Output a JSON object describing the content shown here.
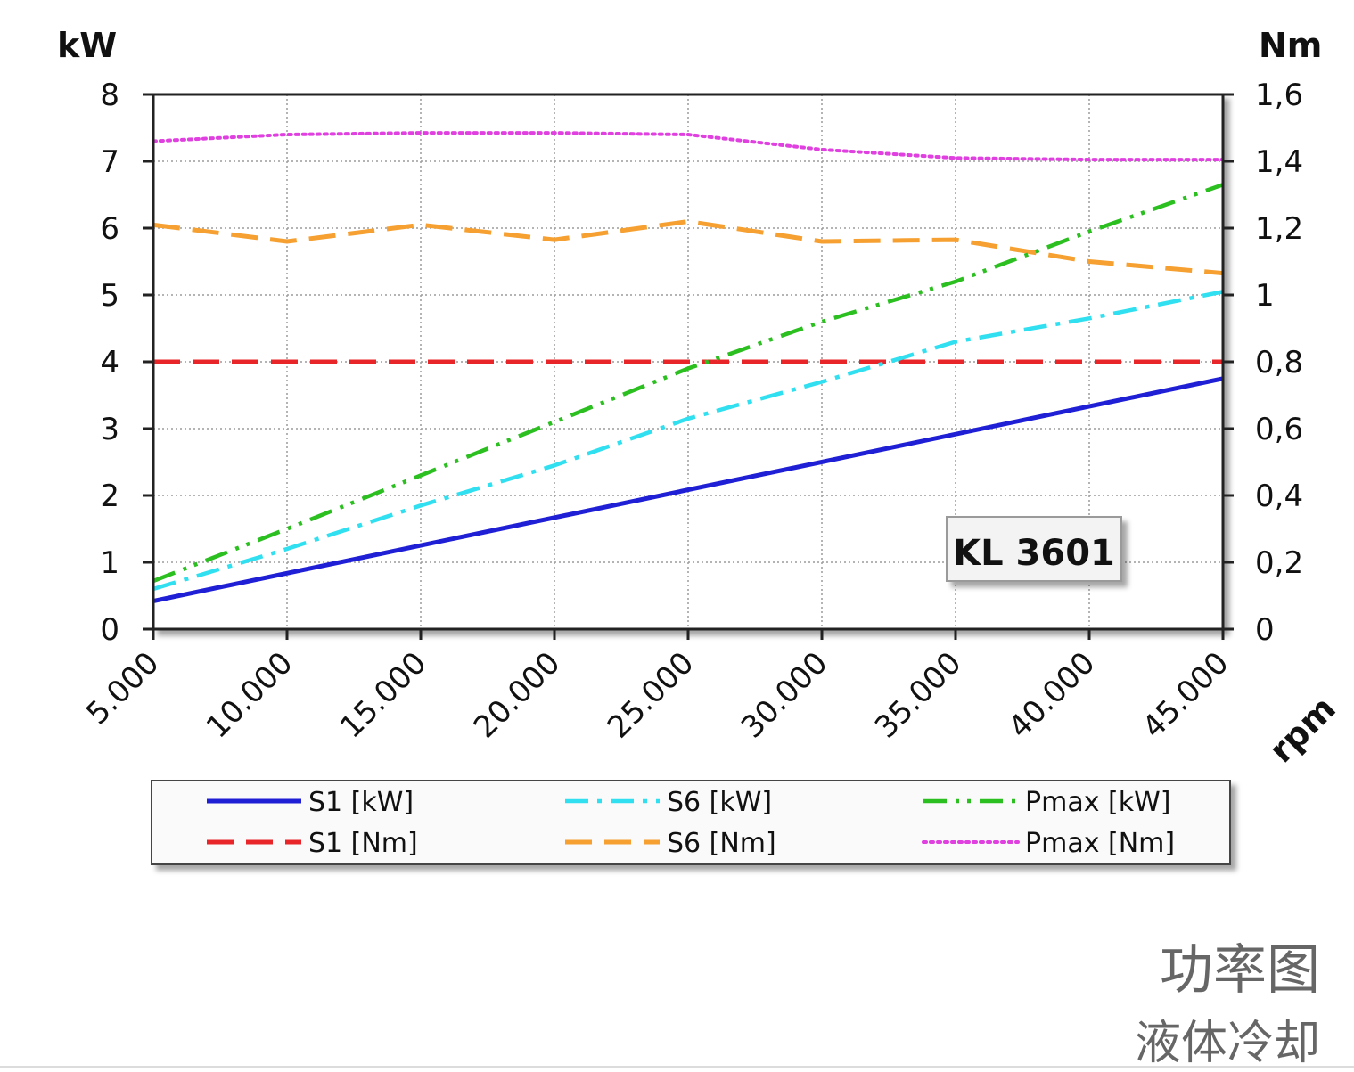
{
  "chart_data": {
    "type": "line",
    "title": "",
    "model_label": "KL 3601",
    "y_left_label": "kW",
    "y_right_label": "Nm",
    "xlabel": "rpm",
    "xlim": [
      5000,
      45000
    ],
    "ylim_left": [
      0,
      8
    ],
    "ylim_right": [
      0,
      1.6
    ],
    "x_ticks": [
      5000,
      10000,
      15000,
      20000,
      25000,
      30000,
      35000,
      40000,
      45000
    ],
    "x_tick_labels": [
      "5.000",
      "10.000",
      "15.000",
      "20.000",
      "25.000",
      "30.000",
      "35.000",
      "40.000",
      "45.000"
    ],
    "y_left_ticks": [
      0,
      1,
      2,
      3,
      4,
      5,
      6,
      7,
      8
    ],
    "y_left_tick_labels": [
      "0",
      "1",
      "2",
      "3",
      "4",
      "5",
      "6",
      "7",
      "8"
    ],
    "y_right_ticks": [
      0,
      0.2,
      0.4,
      0.6,
      0.8,
      1.0,
      1.2,
      1.4,
      1.6
    ],
    "y_right_tick_labels": [
      "0",
      "0,2",
      "0,4",
      "0,6",
      "0,8",
      "1",
      "1,2",
      "1,4",
      "1,6"
    ],
    "grid": true,
    "legend_position": "bottom",
    "series": [
      {
        "name": "S1 [kW]",
        "axis": "left",
        "color": "#1f1fd6",
        "style": "solid",
        "x": [
          5000,
          45000
        ],
        "values": [
          0.42,
          3.75
        ]
      },
      {
        "name": "S1 [Nm]",
        "axis": "right",
        "color": "#e8262a",
        "style": "dashed",
        "x": [
          5000,
          45000
        ],
        "values": [
          0.8,
          0.8
        ]
      },
      {
        "name": "S6 [kW]",
        "axis": "left",
        "color": "#30e0f0",
        "style": "dashdot",
        "x": [
          5000,
          10000,
          15000,
          20000,
          25000,
          30000,
          35000,
          40000,
          45000
        ],
        "values": [
          0.6,
          1.2,
          1.85,
          2.45,
          3.15,
          3.7,
          4.3,
          4.65,
          5.05
        ]
      },
      {
        "name": "S6 [Nm]",
        "axis": "right",
        "color": "#f5a030",
        "style": "dashed",
        "x": [
          5000,
          10000,
          15000,
          20000,
          25000,
          30000,
          35000,
          40000,
          45000
        ],
        "values": [
          1.21,
          1.16,
          1.21,
          1.165,
          1.22,
          1.16,
          1.165,
          1.1,
          1.065
        ]
      },
      {
        "name": "Pmax [kW]",
        "axis": "left",
        "color": "#2bbf20",
        "style": "dashdotdot",
        "x": [
          5000,
          10000,
          15000,
          20000,
          25000,
          30000,
          35000,
          40000,
          45000
        ],
        "values": [
          0.72,
          1.5,
          2.3,
          3.1,
          3.9,
          4.6,
          5.2,
          5.95,
          6.65
        ]
      },
      {
        "name": "Pmax [Nm]",
        "axis": "right",
        "color": "#e040e0",
        "style": "dotted",
        "x": [
          5000,
          10000,
          15000,
          20000,
          25000,
          30000,
          35000,
          40000,
          45000
        ],
        "values": [
          1.46,
          1.48,
          1.485,
          1.485,
          1.48,
          1.435,
          1.41,
          1.405,
          1.405
        ]
      }
    ]
  },
  "captions": {
    "main": "功率图",
    "sub": "液体冷却"
  }
}
